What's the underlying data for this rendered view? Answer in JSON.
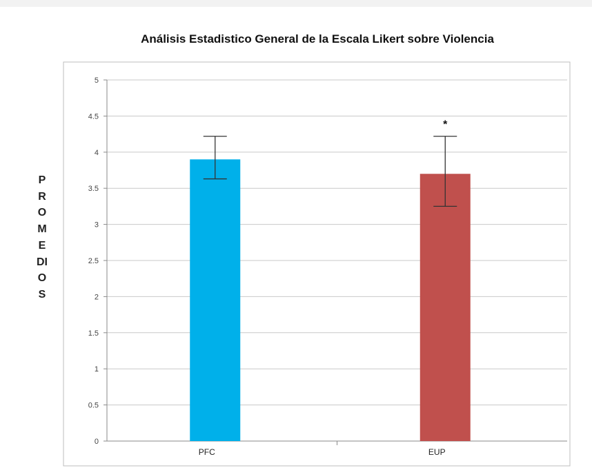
{
  "chart_data": {
    "type": "bar",
    "title": "Análisis Estadistico General de la Escala Likert sobre Violencia",
    "xlabel": "",
    "ylabel": "PROMEDIOS",
    "categories": [
      "PFC",
      "EUP"
    ],
    "values": [
      3.9,
      3.7
    ],
    "error_low": [
      3.63,
      3.25
    ],
    "error_high": [
      4.22,
      4.22
    ],
    "bar_colors": [
      "#00B0EA",
      "#C0504D"
    ],
    "annotations": [
      {
        "category": "EUP",
        "text": "*"
      }
    ],
    "ylim": [
      0,
      5
    ],
    "yticks": [
      0,
      0.5,
      1,
      1.5,
      2,
      2.5,
      3,
      3.5,
      4,
      4.5,
      5
    ],
    "ytick_labels": [
      "0",
      "0.5",
      "1",
      "1.5",
      "2",
      "2.5",
      "3",
      "3.5",
      "4",
      "4.5",
      "5"
    ],
    "grid": true,
    "legend": "none"
  }
}
